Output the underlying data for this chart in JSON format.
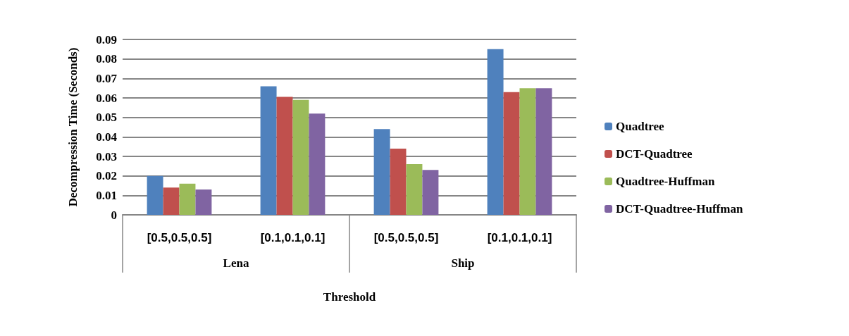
{
  "chart_data": {
    "type": "bar",
    "xlabel": "Threshold",
    "ylabel": "Decompression Time (Seconds)",
    "categories": [
      "[0.5,0.5,0.5]",
      "[0.1,0.1,0.1]",
      "[0.5,0.5,0.5]",
      "[0.1,0.1,0.1]"
    ],
    "annotations": [
      "Lena",
      "Ship"
    ],
    "series": [
      {
        "name": "Quadtree",
        "color": "#4f81bd",
        "values": [
          0.02,
          0.066,
          0.044,
          0.085
        ]
      },
      {
        "name": "DCT-Quadtree",
        "color": "#c0504d",
        "values": [
          0.014,
          0.0605,
          0.034,
          0.063
        ]
      },
      {
        "name": "Quadtree-Huffman",
        "color": "#9bbb59",
        "values": [
          0.016,
          0.059,
          0.026,
          0.065
        ]
      },
      {
        "name": "DCT-Quadtree-Huffman",
        "color": "#8064a2",
        "values": [
          0.013,
          0.052,
          0.023,
          0.065
        ]
      }
    ],
    "ylim": [
      0,
      0.09
    ],
    "yticks": [
      0,
      0.01,
      0.02,
      0.03,
      0.04,
      0.05,
      0.06,
      0.07,
      0.08,
      0.09
    ],
    "grid": "y",
    "legend": "right"
  }
}
